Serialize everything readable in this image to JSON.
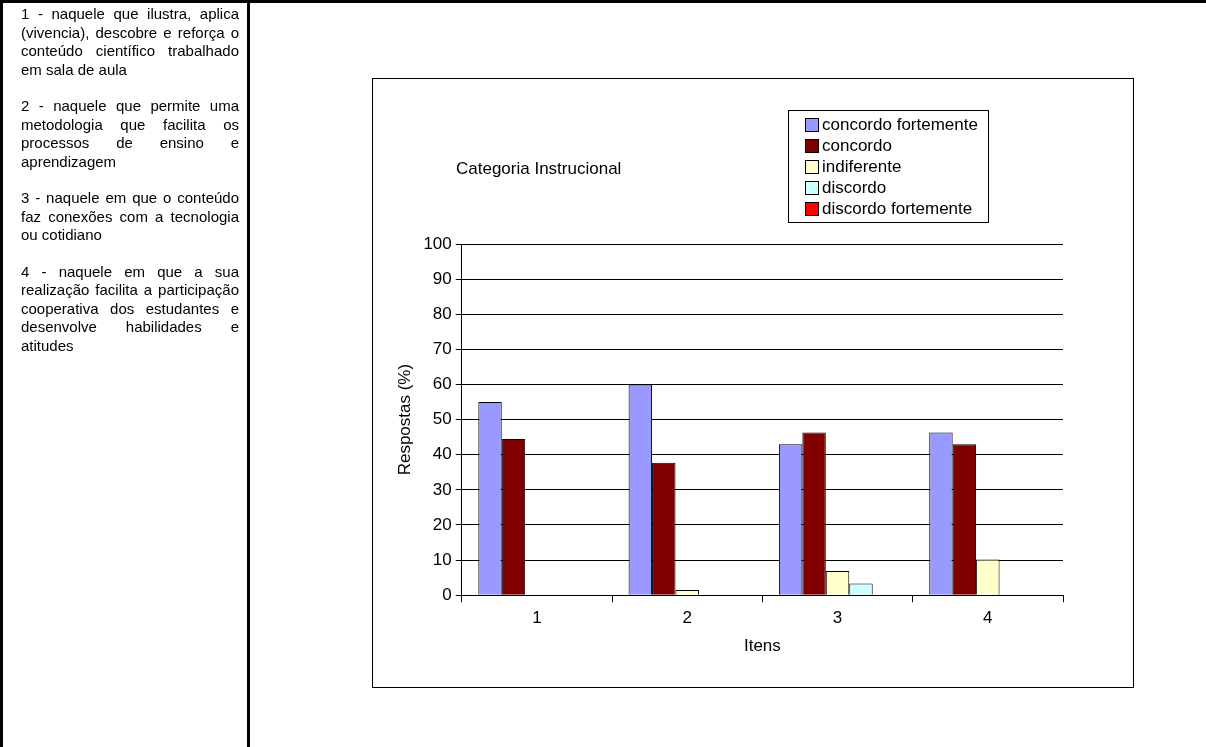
{
  "chart_data": {
    "type": "bar",
    "title": "Categoria Instrucional",
    "xlabel": "Itens",
    "ylabel": "Respostas (%)",
    "categories": [
      "1",
      "2",
      "3",
      "4"
    ],
    "series": [
      {
        "name": "concordo fortemente",
        "color": "#9999ff",
        "values": [
          55,
          60,
          43,
          46.3
        ]
      },
      {
        "name": "concordo",
        "color": "#800000",
        "values": [
          44.5,
          37.7,
          46.3,
          43
        ]
      },
      {
        "name": "indiferente",
        "color": "#ffffcc",
        "values": [
          0,
          1.5,
          6.9,
          10.2
        ]
      },
      {
        "name": "discordo",
        "color": "#ccffff",
        "values": [
          0,
          0,
          3.3,
          0
        ]
      },
      {
        "name": "discordo fortemente",
        "color": "#ff0000",
        "values": [
          0,
          0,
          0,
          0
        ]
      }
    ],
    "ylim": [
      0,
      100
    ],
    "yticks": [
      0,
      10,
      20,
      30,
      40,
      50,
      60,
      70,
      80,
      90,
      100
    ],
    "grid": "y",
    "legend": "top right",
    "annotations": [
      "1 - naquele que ilustra, aplica (vivencia), descobre e reforça o conteúdo científico trabalhado em sala de aula",
      "2 - naquele que permite uma metodologia que facilita os processos de ensino e aprendizagem",
      "3 - naquele em que o conteúdo faz conexões com a tecnologia ou cotidiano",
      "4 - naquele em que a sua realização facilita a participação cooperativa dos estudantes e desenvolve habilidades e atitudes"
    ]
  }
}
